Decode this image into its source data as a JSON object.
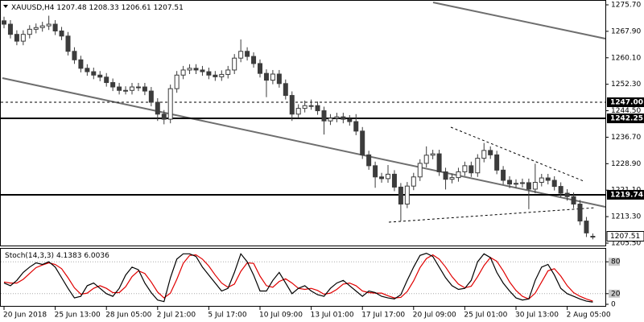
{
  "chart_data": {
    "type": "candlestick",
    "symbol": "XAUUSD,H4",
    "color": "#3c3c3c",
    "categories": [
      "20 Jun 2018",
      null,
      null,
      null,
      null,
      null,
      null,
      null,
      "25 Jun 13:00",
      null,
      null,
      null,
      null,
      null,
      null,
      null,
      "28 Jun 05:00",
      null,
      null,
      null,
      null,
      null,
      null,
      null,
      "2 Jul 21:00",
      null,
      null,
      null,
      null,
      null,
      null,
      null,
      "5 Jul 17:00",
      null,
      null,
      null,
      null,
      null,
      null,
      null,
      "10 Jul 09:00",
      null,
      null,
      null,
      null,
      null,
      null,
      null,
      "13 Jul 01:00",
      null,
      null,
      null,
      null,
      null,
      null,
      null,
      "17 Jul 17:00",
      null,
      null,
      null,
      null,
      null,
      null,
      null,
      "20 Jul 09:00",
      null,
      null,
      null,
      null,
      null,
      null,
      null,
      "25 Jul 01:00",
      null,
      null,
      null,
      null,
      null,
      null,
      null,
      "30 Jul 13:00",
      null,
      null,
      null,
      null,
      null,
      null,
      null,
      "2 Aug 05:00",
      null,
      null,
      null,
      null
    ],
    "open": [
      1271,
      1270,
      1267,
      1265,
      1267,
      1268.5,
      1269,
      1269.5,
      1270,
      1268,
      1266.5,
      1262,
      1259.5,
      1257,
      1256,
      1255,
      1254.4,
      1252.8,
      1251.5,
      1250.5,
      1250.5,
      1251.5,
      1251.5,
      1250.3,
      1247,
      1243.5,
      1242,
      1251,
      1255,
      1256.5,
      1257,
      1256.5,
      1256,
      1255,
      1254.5,
      1255.2,
      1256.5,
      1260,
      1262,
      1260.5,
      1258.4,
      1255.5,
      1253.5,
      1255.3,
      1252.5,
      1249,
      1243.5,
      1245.2,
      1246,
      1246,
      1244.5,
      1241.5,
      1242.3,
      1242.7,
      1242,
      1241.3,
      1238.5,
      1231.5,
      1228.3,
      1225,
      1224.5,
      1225.8,
      1222,
      1217,
      1222.3,
      1225,
      1229,
      1231.4,
      1231.8,
      1226.5,
      1224.3,
      1224.8,
      1226.5,
      1228.3,
      1226.2,
      1230.5,
      1232.8,
      1231.5,
      1227,
      1224,
      1222.9,
      1223.1,
      1223.3,
      1221.4,
      1223.4,
      1224.7,
      1224,
      1222.2,
      1220.2,
      1219.2,
      1217,
      1212,
      1207.48
    ],
    "high": [
      1272.2,
      1271.2,
      1268.2,
      1268.2,
      1269.7,
      1270.2,
      1270.7,
      1272.5,
      1271.2,
      1269.2,
      1267.7,
      1263.2,
      1260.7,
      1258.2,
      1257.2,
      1256.2,
      1255.6,
      1254,
      1252.7,
      1251.7,
      1252.7,
      1252.7,
      1252.7,
      1251.5,
      1248.2,
      1244.7,
      1252.2,
      1256.2,
      1257.7,
      1258.2,
      1258.2,
      1257.7,
      1257.2,
      1256.2,
      1256.4,
      1257.7,
      1261.2,
      1265.5,
      1263.2,
      1261.7,
      1259.6,
      1256.7,
      1256.5,
      1256.5,
      1253.7,
      1250.2,
      1246.4,
      1247.5,
      1247.8,
      1247.2,
      1245.7,
      1243.5,
      1243.9,
      1243.9,
      1243.2,
      1243.5,
      1239.7,
      1232.7,
      1229.5,
      1226.2,
      1228.5,
      1227,
      1223.2,
      1223.5,
      1226.2,
      1230.2,
      1234,
      1233,
      1233,
      1227.7,
      1226,
      1227.7,
      1229.5,
      1229.5,
      1231.7,
      1235,
      1234,
      1232.7,
      1228.2,
      1225.2,
      1224.3,
      1224.5,
      1224.5,
      1228.9,
      1225.9,
      1225.9,
      1225.2,
      1223.4,
      1221.4,
      1220.4,
      1218.2,
      1213.2,
      1208.33
    ],
    "low": [
      1268.8,
      1265.8,
      1263.8,
      1263.8,
      1265.8,
      1267.3,
      1267.8,
      1268.3,
      1266.8,
      1265.3,
      1260.8,
      1258.3,
      1255.8,
      1254.8,
      1253.8,
      1253.2,
      1251.6,
      1250.3,
      1249.3,
      1249.3,
      1249.3,
      1250.3,
      1249.1,
      1245.8,
      1241.5,
      1240.5,
      1240.8,
      1249.8,
      1253.8,
      1255.3,
      1255.3,
      1254.8,
      1253.8,
      1253.3,
      1253.3,
      1254,
      1255.3,
      1258.8,
      1259.3,
      1257.2,
      1254.3,
      1248.5,
      1252.3,
      1251.3,
      1247.8,
      1241.5,
      1242.3,
      1244,
      1244.8,
      1243.3,
      1237.5,
      1240.3,
      1241.1,
      1240.8,
      1240.1,
      1237.3,
      1230.3,
      1227.1,
      1221.8,
      1223.3,
      1223.3,
      1220.8,
      1212,
      1215.8,
      1221.1,
      1223.8,
      1227.8,
      1230.2,
      1225.3,
      1221.3,
      1223.1,
      1223.6,
      1225.3,
      1225,
      1225,
      1229.3,
      1230.3,
      1225.8,
      1222.8,
      1221.7,
      1221.7,
      1221.9,
      1215.5,
      1220.2,
      1222.2,
      1222.8,
      1221,
      1219,
      1218,
      1215.8,
      1210.8,
      1207.3,
      1206.61
    ],
    "close": [
      1270,
      1267,
      1265,
      1267,
      1268.5,
      1269,
      1269.5,
      1270,
      1268,
      1266.5,
      1262,
      1259.5,
      1257,
      1256,
      1255,
      1254.4,
      1252.8,
      1251.5,
      1250.5,
      1250.5,
      1251.5,
      1251.5,
      1250.3,
      1247,
      1243.5,
      1242,
      1251,
      1255,
      1256.5,
      1257,
      1256.5,
      1256,
      1255,
      1254.5,
      1255.2,
      1256.5,
      1260,
      1262,
      1260.5,
      1258.4,
      1255.5,
      1253.5,
      1255.3,
      1252.5,
      1249,
      1243.5,
      1245.2,
      1246,
      1246,
      1244.5,
      1241.5,
      1242.3,
      1242.7,
      1242,
      1241.3,
      1238.5,
      1231.5,
      1228.3,
      1225,
      1224.5,
      1225.8,
      1222,
      1217,
      1222.3,
      1225,
      1229,
      1231.4,
      1231.8,
      1226.5,
      1224.3,
      1224.8,
      1226.5,
      1228.3,
      1226.2,
      1230.5,
      1232.8,
      1231.5,
      1227,
      1224,
      1222.9,
      1223.1,
      1223.3,
      1221.4,
      1223.4,
      1224.7,
      1224,
      1222.2,
      1220.2,
      1219.2,
      1217,
      1212,
      1208.5,
      1207.51
    ],
    "ylim": [
      1205.5,
      1275.7
    ],
    "yticks": [
      {
        "value": 1205.5,
        "label": "1205.50"
      },
      {
        "value": 1213.3,
        "label": "1213.30"
      },
      {
        "value": 1221.1,
        "label": "1221.10"
      },
      {
        "value": 1228.9,
        "label": "1228.90"
      },
      {
        "value": 1236.7,
        "label": "1236.70"
      },
      {
        "value": 1244.5,
        "label": "1244.50"
      },
      {
        "value": 1252.3,
        "label": "1252.30"
      },
      {
        "value": 1260.1,
        "label": "1260.10"
      },
      {
        "value": 1267.9,
        "label": "1267.90"
      },
      {
        "value": 1275.7,
        "label": "1275.70"
      }
    ],
    "levels": [
      {
        "value": 1247,
        "label": "1247.00",
        "style": "dashed"
      },
      {
        "value": 1242.25,
        "label": "1242.25",
        "style": "solid"
      },
      {
        "value": 1219.74,
        "label": "1219.74",
        "style": "solid"
      }
    ],
    "indicator": {
      "type": "line",
      "title": "Stoch(14,3,3)",
      "ylim": [
        0,
        100
      ],
      "yticks": [
        0,
        20,
        80
      ],
      "series": [
        {
          "color": "#000000",
          "values": [
            40,
            35,
            45,
            60,
            70,
            78,
            75,
            80,
            70,
            50,
            30,
            12,
            15,
            35,
            40,
            30,
            20,
            15,
            30,
            55,
            70,
            65,
            40,
            22,
            8,
            5,
            50,
            85,
            95,
            95,
            90,
            70,
            55,
            40,
            25,
            30,
            60,
            95,
            80,
            55,
            25,
            25,
            45,
            60,
            40,
            20,
            30,
            35,
            25,
            18,
            15,
            30,
            40,
            45,
            35,
            25,
            15,
            25,
            22,
            15,
            12,
            10,
            18,
            45,
            70,
            92,
            96,
            90,
            70,
            50,
            35,
            28,
            30,
            45,
            80,
            95,
            88,
            60,
            40,
            25,
            12,
            8,
            10,
            45,
            70,
            75,
            55,
            30,
            20,
            15,
            10,
            6,
            4.1383
          ]
        },
        {
          "color": "#e00000",
          "values": [
            42,
            40,
            40,
            47,
            58,
            69,
            74,
            78,
            75,
            67,
            50,
            31,
            19,
            21,
            30,
            35,
            30,
            22,
            22,
            33,
            52,
            63,
            58,
            42,
            23,
            12,
            21,
            47,
            77,
            92,
            93,
            85,
            72,
            55,
            40,
            32,
            38,
            62,
            78,
            77,
            53,
            35,
            32,
            43,
            48,
            40,
            30,
            28,
            30,
            26,
            19,
            21,
            28,
            38,
            40,
            35,
            25,
            22,
            21,
            21,
            16,
            12,
            13,
            24,
            44,
            69,
            86,
            93,
            85,
            70,
            52,
            38,
            31,
            34,
            52,
            73,
            88,
            81,
            63,
            42,
            26,
            15,
            10,
            21,
            42,
            63,
            67,
            53,
            35,
            22,
            15,
            10,
            6.0036
          ]
        }
      ]
    }
  }
}
